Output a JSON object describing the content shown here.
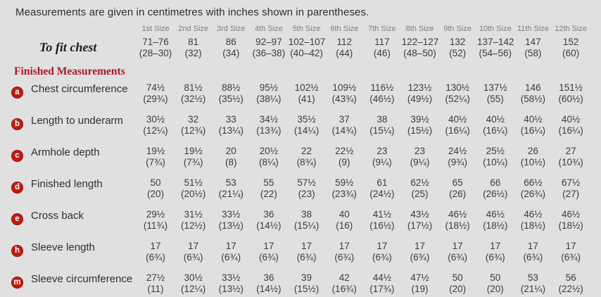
{
  "intro": "Measurements are given in centimetres with inches shown in parentheses.",
  "colors": {
    "background": "#e0e0e0",
    "badge_red": "#bf1c10",
    "heading_red": "#a81a28",
    "size_header_gray": "#7e7e7e",
    "value_text": "#3c3c3c"
  },
  "table": {
    "size_headers": [
      "1st Size",
      "2nd Size",
      "3rd Size",
      "4th Size",
      "5th Size",
      "6th Size",
      "7th Size",
      "8th Size",
      "9th Size",
      "10th Size",
      "11th Size",
      "12th Size"
    ],
    "to_fit_chest": {
      "label": "To fit chest",
      "cm": [
        "71–76",
        "81",
        "86",
        "92–97",
        "102–107",
        "112",
        "117",
        "122–127",
        "132",
        "137–142",
        "147",
        "152"
      ],
      "in": [
        "(28–30)",
        "(32)",
        "(34)",
        "(36–38)",
        "(40–42)",
        "(44)",
        "(46)",
        "(48–50)",
        "(52)",
        "(54–56)",
        "(58)",
        "(60)"
      ]
    },
    "section_heading": "Finished Measurements",
    "rows": [
      {
        "letter": "a",
        "label": "Chest circumference",
        "cm": [
          "74½",
          "81½",
          "88½",
          "95½",
          "102½",
          "109½",
          "116½",
          "123½",
          "130½",
          "137½",
          "146",
          "151½"
        ],
        "in": [
          "(29¾)",
          "(32½)",
          "(35½)",
          "(38¼)",
          "(41)",
          "(43¾)",
          "(46½)",
          "(49½)",
          "(52¼)",
          "(55)",
          "(58½)",
          "(60½)"
        ]
      },
      {
        "letter": "b",
        "label": "Length to underarm",
        "cm": [
          "30½",
          "32",
          "33",
          "34½",
          "35½",
          "37",
          "38",
          "39½",
          "40½",
          "40½",
          "40½",
          "40½"
        ],
        "in": [
          "(12¼)",
          "(12¾)",
          "(13¼)",
          "(13¾)",
          "(14¼)",
          "(14¾)",
          "(15¼)",
          "(15½)",
          "(16¼)",
          "(16¼)",
          "(16¼)",
          "(16¼)"
        ]
      },
      {
        "letter": "c",
        "label": "Armhole depth",
        "cm": [
          "19½",
          "19½",
          "20",
          "20½",
          "22",
          "22½",
          "23",
          "23",
          "24½",
          "25½",
          "26",
          "27"
        ],
        "in": [
          "(7¾)",
          "(7¾)",
          "(8)",
          "(8¼)",
          "(8¾)",
          "(9)",
          "(9¼)",
          "(9¼)",
          "(9¾)",
          "(10¼)",
          "(10½)",
          "(10¾)"
        ]
      },
      {
        "letter": "d",
        "label": "Finished length",
        "cm": [
          "50",
          "51½",
          "53",
          "55",
          "57½",
          "59½",
          "61",
          "62½",
          "65",
          "66",
          "66½",
          "67½"
        ],
        "in": [
          "(20)",
          "(20½)",
          "(21¼)",
          "(22)",
          "(23)",
          "(23¾)",
          "(24½)",
          "(25)",
          "(26)",
          "(26½)",
          "(26¾)",
          "(27)"
        ]
      },
      {
        "letter": "e",
        "label": "Cross back",
        "cm": [
          "29½",
          "31½",
          "33½",
          "36",
          "38",
          "40",
          "41½",
          "43½",
          "46½",
          "46½",
          "46½",
          "46½"
        ],
        "in": [
          "(11¾)",
          "(12½)",
          "(13½)",
          "(14½)",
          "(15¼)",
          "(16)",
          "(16½)",
          "(17½)",
          "(18½)",
          "(18½)",
          "(18½)",
          "(18½)"
        ]
      },
      {
        "letter": "h",
        "label": "Sleeve length",
        "cm": [
          "17",
          "17",
          "17",
          "17",
          "17",
          "17",
          "17",
          "17",
          "17",
          "17",
          "17",
          "17"
        ],
        "in": [
          "(6¾)",
          "(6¾)",
          "(6¾)",
          "(6¾)",
          "(6¾)",
          "(6¾)",
          "(6¾)",
          "(6¾)",
          "(6¾)",
          "(6¾)",
          "(6¾)",
          "(6¾)"
        ]
      },
      {
        "letter": "m",
        "label": "Sleeve circumference",
        "cm": [
          "27½",
          "30½",
          "33½",
          "36",
          "39",
          "42",
          "44½",
          "47½",
          "50",
          "50",
          "53",
          "56"
        ],
        "in": [
          "(11)",
          "(12¼)",
          "(13½)",
          "(14½)",
          "(15½)",
          "(16¾)",
          "(17¾)",
          "(19)",
          "(20)",
          "(20)",
          "(21¼)",
          "(22½)"
        ]
      }
    ]
  }
}
